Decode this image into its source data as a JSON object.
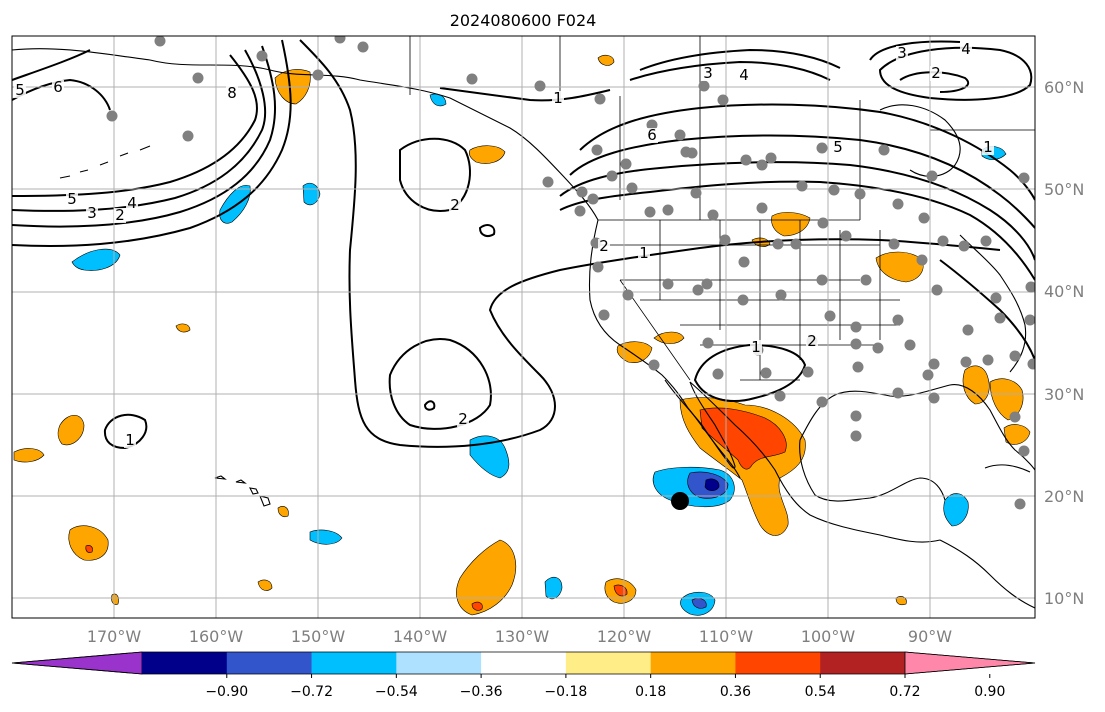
{
  "title": "2024080600 F024",
  "lat_labels": [
    "60°N",
    "50°N",
    "40°N",
    "30°N",
    "20°N",
    "10°N"
  ],
  "lon_labels": [
    "170°W",
    "160°W",
    "150°W",
    "140°W",
    "130°W",
    "120°W",
    "110°W",
    "100°W",
    "90°W"
  ],
  "contour_labels": [
    "5",
    "6",
    "8",
    "4",
    "5",
    "3",
    "2",
    "2",
    "1",
    "1",
    "2",
    "1",
    "2",
    "1",
    "3",
    "4",
    "6",
    "5",
    "3",
    "4",
    "2",
    "1",
    "2"
  ],
  "colorbar": {
    "ticks": [
      "−0.90",
      "−0.72",
      "−0.54",
      "−0.36",
      "−0.18",
      "0.18",
      "0.36",
      "0.54",
      "0.72",
      "0.90"
    ],
    "colors": [
      "#9933cc",
      "#00008b",
      "#3355cc",
      "#00bfff",
      "#aee0ff",
      "#ffffff",
      "#ffee88",
      "#ffa500",
      "#ff4500",
      "#b22222",
      "#ff88aa"
    ]
  },
  "colors": {
    "pos_light": "#ffa500",
    "pos_mid": "#ff4500",
    "neg_light": "#00bfff",
    "neg_mid": "#3355cc",
    "neg_dark": "#00008b",
    "station": "#808080"
  }
}
